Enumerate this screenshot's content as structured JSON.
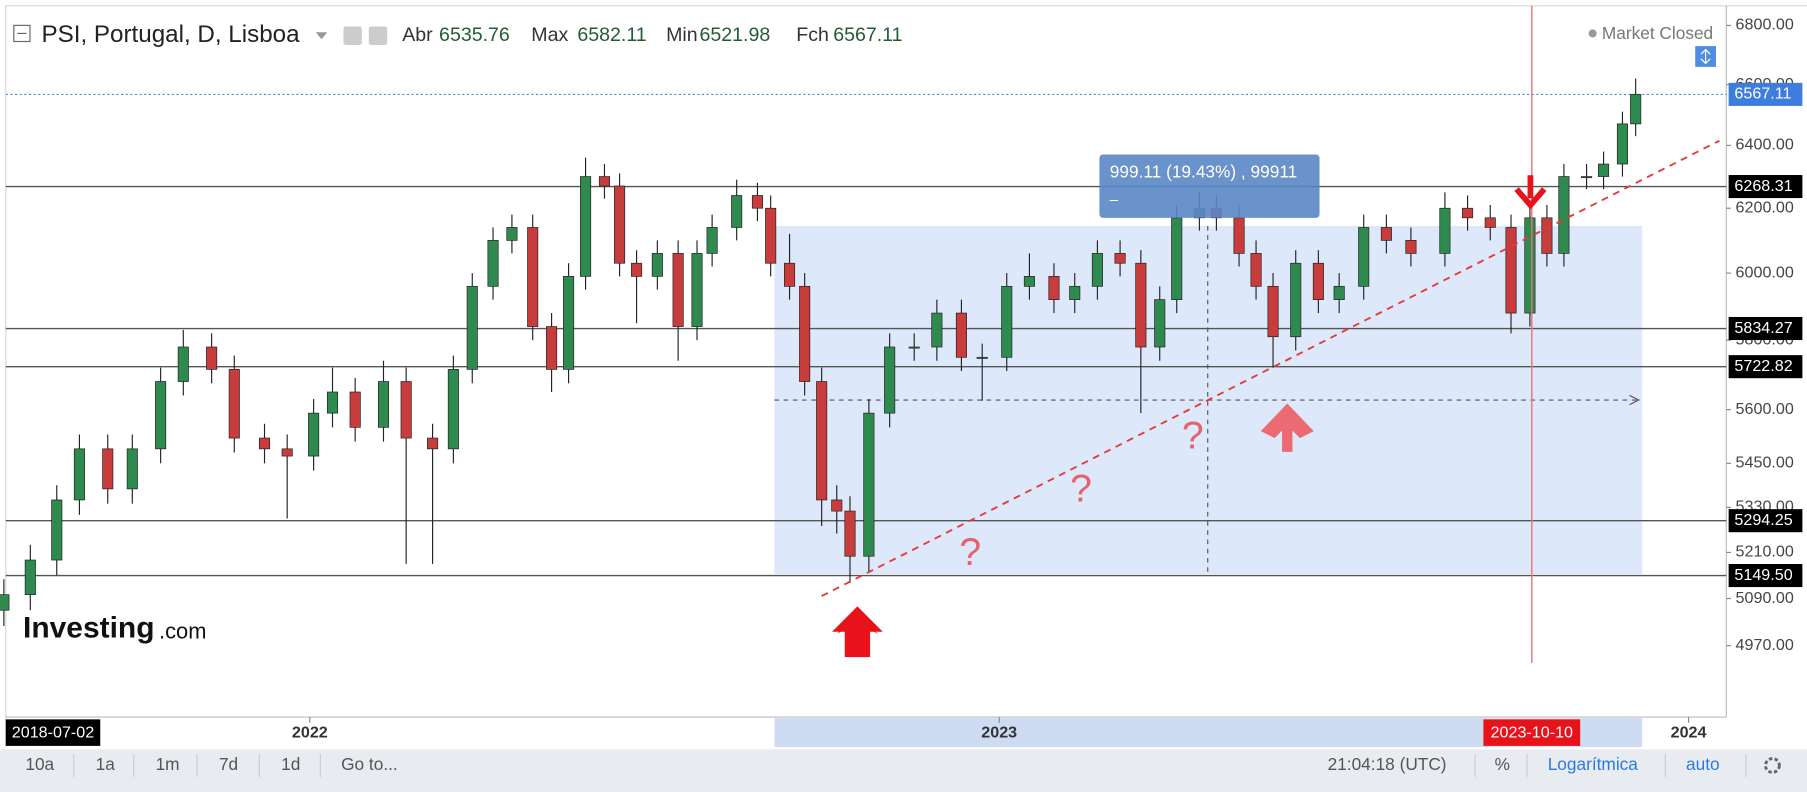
{
  "header": {
    "title": "PSI, Portugal, D, Lisboa",
    "ohlc": [
      {
        "label": "Abr",
        "value": 6535.76
      },
      {
        "label": "Max",
        "value": 6582.11
      },
      {
        "label": "Min",
        "value": 6521.98
      },
      {
        "label": "Fch",
        "value": 6567.11
      }
    ],
    "status": "Market Closed"
  },
  "branding": {
    "name": "Investing",
    "suffix": ".com"
  },
  "chart_data": {
    "type": "candlestick",
    "log": true,
    "up_color": "#2f8a4f",
    "down_color": "#c83c3c",
    "xlim": [
      "2021-07-24",
      "2024-01-21"
    ],
    "xticks": [
      {
        "value": "2022-01-01",
        "label": "2022"
      },
      {
        "value": "2023-01-01",
        "label": "2023"
      },
      {
        "value": "2024-01-01",
        "label": "2024"
      }
    ],
    "ylim": [
      4794,
      6868
    ],
    "yticks": [
      {
        "value": 4970,
        "label": "4970.00"
      },
      {
        "value": 5090,
        "label": "5090.00"
      },
      {
        "value": 5210,
        "label": "5210.00"
      },
      {
        "value": 5330,
        "label": "5330.00"
      },
      {
        "value": 5450,
        "label": "5450.00"
      },
      {
        "value": 5600,
        "label": "5600.00"
      },
      {
        "value": 5800,
        "label": "5800.00"
      },
      {
        "value": 6000,
        "label": "6000.00"
      },
      {
        "value": 6200,
        "label": "6200.00"
      },
      {
        "value": 6400,
        "label": "6400.00"
      },
      {
        "value": 6600,
        "label": "6600.00"
      },
      {
        "value": 6800,
        "label": "6800.00"
      }
    ],
    "levels": [
      6268.31,
      5834.27,
      5722.82,
      5294.25,
      {
        "value": 5149.5,
        "label": "5149.50"
      }
    ],
    "last_price": 6567.11,
    "crosshair": "2023-10-10",
    "left_date": "2018-07-02",
    "measure_label": "999.11 (19.43%) , 99911",
    "measure_sub": "–",
    "annotations": [
      "?",
      "?",
      "?"
    ],
    "x": [
      "2021-07-23",
      "2021-08-06",
      "2021-08-20",
      "2021-09-01",
      "2021-09-16",
      "2021-09-29",
      "2021-10-14",
      "2021-10-26",
      "2021-11-10",
      "2021-11-22",
      "2021-12-08",
      "2021-12-20",
      "2022-01-03",
      "2022-01-13",
      "2022-01-25",
      "2022-02-09",
      "2022-02-21",
      "2022-03-07",
      "2022-03-18",
      "2022-03-28",
      "2022-04-08",
      "2022-04-18",
      "2022-04-29",
      "2022-05-09",
      "2022-05-18",
      "2022-05-27",
      "2022-06-06",
      "2022-06-14",
      "2022-06-23",
      "2022-07-04",
      "2022-07-15",
      "2022-07-25",
      "2022-08-02",
      "2022-08-15",
      "2022-08-26",
      "2022-09-02",
      "2022-09-12",
      "2022-09-20",
      "2022-09-29",
      "2022-10-07",
      "2022-10-14",
      "2022-10-24",
      "2022-11-04",
      "2022-11-17",
      "2022-11-29",
      "2022-12-12",
      "2022-12-23",
      "2023-01-05",
      "2023-01-17",
      "2023-01-30",
      "2023-02-10",
      "2023-02-22",
      "2023-03-06",
      "2023-03-17",
      "2023-03-27",
      "2023-04-05",
      "2023-04-17",
      "2023-04-26",
      "2023-05-08",
      "2023-05-17",
      "2023-05-26",
      "2023-06-07",
      "2023-06-19",
      "2023-06-30",
      "2023-07-13",
      "2023-07-25",
      "2023-08-07",
      "2023-08-25",
      "2023-09-06",
      "2023-09-18",
      "2023-09-29",
      "2023-10-09",
      "2023-10-18",
      "2023-10-27",
      "2023-11-08",
      "2023-11-17",
      "2023-11-27",
      "2023-12-04"
    ],
    "open": [
      5060,
      5100,
      5190,
      5350,
      5490,
      5380,
      5490,
      5680,
      5780,
      5715,
      5520,
      5490,
      5470,
      5590,
      5650,
      5550,
      5680,
      5520,
      5490,
      5715,
      5960,
      6100,
      6140,
      5840,
      5715,
      5990,
      6300,
      6270,
      6030,
      5990,
      6060,
      5840,
      6060,
      6140,
      6240,
      6200,
      6030,
      5960,
      5680,
      5350,
      5320,
      5200,
      5590,
      5780,
      5780,
      5880,
      5750,
      5750,
      5960,
      5990,
      5920,
      5960,
      6060,
      6030,
      5780,
      5920,
      6170,
      6200,
      6170,
      6060,
      5960,
      5810,
      6030,
      5920,
      5960,
      6140,
      6100,
      6060,
      6200,
      6170,
      6140,
      5880,
      6170,
      6060,
      6300,
      6300,
      6340,
      6470
    ],
    "high": [
      5140,
      5230,
      5390,
      5530,
      5530,
      5530,
      5720,
      5830,
      5820,
      5755,
      5560,
      5530,
      5630,
      5720,
      5690,
      5740,
      5720,
      5560,
      5755,
      6000,
      6140,
      6180,
      6180,
      5880,
      6030,
      6360,
      6340,
      6310,
      6070,
      6100,
      6100,
      6100,
      6180,
      6290,
      6280,
      6240,
      6120,
      6000,
      5720,
      5390,
      5360,
      5630,
      5820,
      5820,
      5920,
      5920,
      5790,
      6000,
      6060,
      6030,
      6000,
      6100,
      6100,
      6070,
      5960,
      6210,
      6250,
      6240,
      6210,
      6100,
      6000,
      6070,
      6070,
      6000,
      6180,
      6180,
      6140,
      6250,
      6240,
      6210,
      6180,
      6210,
      6210,
      6340,
      6340,
      6380,
      6510,
      6620
    ],
    "low": [
      5020,
      5060,
      5150,
      5310,
      5340,
      5340,
      5450,
      5640,
      5675,
      5480,
      5450,
      5300,
      5430,
      5550,
      5510,
      5510,
      5180,
      5180,
      5450,
      5675,
      5920,
      6060,
      5800,
      5650,
      5675,
      5950,
      6230,
      5990,
      5850,
      5950,
      5740,
      5800,
      6020,
      6100,
      6160,
      5990,
      5920,
      5640,
      5280,
      5260,
      5130,
      5160,
      5550,
      5740,
      5740,
      5710,
      5625,
      5710,
      5920,
      5880,
      5880,
      5920,
      5990,
      5590,
      5740,
      5880,
      6130,
      6130,
      6020,
      5920,
      5720,
      5770,
      5880,
      5880,
      5920,
      6060,
      6020,
      6020,
      6130,
      6100,
      5820,
      5840,
      6020,
      6020,
      6260,
      6260,
      6300,
      6430
    ],
    "close": [
      5100,
      5190,
      5350,
      5490,
      5380,
      5490,
      5680,
      5780,
      5715,
      5520,
      5490,
      5470,
      5590,
      5650,
      5550,
      5680,
      5520,
      5490,
      5715,
      5960,
      6100,
      6140,
      5840,
      5715,
      5990,
      6300,
      6270,
      6030,
      5990,
      6060,
      5840,
      6060,
      6140,
      6240,
      6200,
      6030,
      5960,
      5680,
      5350,
      5320,
      5200,
      5590,
      5780,
      5780,
      5880,
      5750,
      5750,
      5960,
      5990,
      5920,
      5960,
      6060,
      6030,
      5780,
      5920,
      6170,
      6200,
      6170,
      6060,
      5960,
      5810,
      6030,
      5920,
      5960,
      6140,
      6100,
      6060,
      6200,
      6170,
      6140,
      5880,
      6170,
      6060,
      6300,
      6300,
      6340,
      6470,
      6567.11
    ]
  },
  "toolbar": {
    "ranges": [
      "10a",
      "1a",
      "1m",
      "7d",
      "1d"
    ],
    "goto": "Go to...",
    "clock": "21:04:18 (UTC)",
    "percent": "%",
    "scale": "Logarítmica",
    "auto": "auto"
  }
}
